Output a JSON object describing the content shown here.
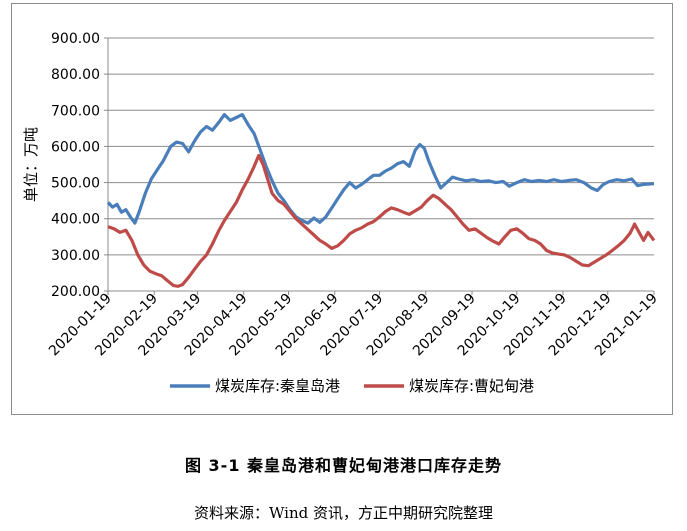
{
  "figure": {
    "title": "图 3-1  秦皇岛港和曹妃甸港港口库存走势",
    "source": "资料来源：Wind 资讯，方正中期研究院整理"
  },
  "chart_data": {
    "type": "line",
    "ylabel": "单位：万吨",
    "ylim": [
      200,
      900
    ],
    "yticks": [
      "200.00",
      "300.00",
      "400.00",
      "500.00",
      "600.00",
      "700.00",
      "800.00",
      "900.00"
    ],
    "xlim": [
      "2020-01-19",
      "2021-01-19"
    ],
    "xticks": [
      "2020-01-19",
      "2020-02-19",
      "2020-03-19",
      "2020-04-19",
      "2020-05-19",
      "2020-06-19",
      "2020-07-19",
      "2020-08-19",
      "2020-09-19",
      "2020-10-19",
      "2020-11-19",
      "2020-12-19",
      "2021-01-19"
    ],
    "grid": true,
    "legend": "bottom",
    "colors": [
      "#4a7ebb",
      "#be4b48"
    ],
    "series": [
      {
        "name": "煤炭库存:秦皇岛港",
        "points": [
          [
            "2020-01-19",
            445
          ],
          [
            "2020-01-22",
            432
          ],
          [
            "2020-01-25",
            440
          ],
          [
            "2020-01-28",
            418
          ],
          [
            "2020-01-31",
            425
          ],
          [
            "2020-02-03",
            405
          ],
          [
            "2020-02-06",
            388
          ],
          [
            "2020-02-09",
            420
          ],
          [
            "2020-02-13",
            470
          ],
          [
            "2020-02-17",
            510
          ],
          [
            "2020-02-21",
            535
          ],
          [
            "2020-02-25",
            560
          ],
          [
            "2020-03-01",
            600
          ],
          [
            "2020-03-05",
            612
          ],
          [
            "2020-03-09",
            608
          ],
          [
            "2020-03-13",
            585
          ],
          [
            "2020-03-17",
            615
          ],
          [
            "2020-03-21",
            640
          ],
          [
            "2020-03-25",
            655
          ],
          [
            "2020-03-29",
            645
          ],
          [
            "2020-04-02",
            665
          ],
          [
            "2020-04-06",
            688
          ],
          [
            "2020-04-10",
            672
          ],
          [
            "2020-04-14",
            680
          ],
          [
            "2020-04-18",
            688
          ],
          [
            "2020-04-22",
            660
          ],
          [
            "2020-04-26",
            635
          ],
          [
            "2020-04-30",
            590
          ],
          [
            "2020-05-04",
            545
          ],
          [
            "2020-05-08",
            505
          ],
          [
            "2020-05-12",
            470
          ],
          [
            "2020-05-16",
            450
          ],
          [
            "2020-05-20",
            425
          ],
          [
            "2020-05-24",
            405
          ],
          [
            "2020-05-28",
            395
          ],
          [
            "2020-06-01",
            388
          ],
          [
            "2020-06-05",
            402
          ],
          [
            "2020-06-09",
            390
          ],
          [
            "2020-06-13",
            405
          ],
          [
            "2020-06-17",
            430
          ],
          [
            "2020-06-21",
            455
          ],
          [
            "2020-06-25",
            480
          ],
          [
            "2020-06-29",
            500
          ],
          [
            "2020-07-03",
            485
          ],
          [
            "2020-07-07",
            495
          ],
          [
            "2020-07-11",
            508
          ],
          [
            "2020-07-15",
            520
          ],
          [
            "2020-07-19",
            520
          ],
          [
            "2020-07-23",
            532
          ],
          [
            "2020-07-27",
            540
          ],
          [
            "2020-07-31",
            552
          ],
          [
            "2020-08-04",
            558
          ],
          [
            "2020-08-08",
            545
          ],
          [
            "2020-08-12",
            590
          ],
          [
            "2020-08-15",
            605
          ],
          [
            "2020-08-18",
            595
          ],
          [
            "2020-08-21",
            560
          ],
          [
            "2020-08-25",
            520
          ],
          [
            "2020-08-29",
            485
          ],
          [
            "2020-09-02",
            500
          ],
          [
            "2020-09-06",
            515
          ],
          [
            "2020-09-10",
            510
          ],
          [
            "2020-09-15",
            505
          ],
          [
            "2020-09-20",
            508
          ],
          [
            "2020-09-25",
            503
          ],
          [
            "2020-09-30",
            505
          ],
          [
            "2020-10-05",
            500
          ],
          [
            "2020-10-10",
            503
          ],
          [
            "2020-10-14",
            490
          ],
          [
            "2020-10-19",
            500
          ],
          [
            "2020-10-24",
            508
          ],
          [
            "2020-10-29",
            503
          ],
          [
            "2020-11-03",
            506
          ],
          [
            "2020-11-08",
            503
          ],
          [
            "2020-11-13",
            508
          ],
          [
            "2020-11-18",
            503
          ],
          [
            "2020-11-23",
            506
          ],
          [
            "2020-11-28",
            508
          ],
          [
            "2020-12-03",
            500
          ],
          [
            "2020-12-08",
            485
          ],
          [
            "2020-12-12",
            478
          ],
          [
            "2020-12-16",
            495
          ],
          [
            "2020-12-20",
            503
          ],
          [
            "2020-12-25",
            508
          ],
          [
            "2020-12-30",
            505
          ],
          [
            "2021-01-04",
            510
          ],
          [
            "2021-01-08",
            492
          ],
          [
            "2021-01-12",
            495
          ],
          [
            "2021-01-19",
            497
          ]
        ]
      },
      {
        "name": "煤炭库存:曹妃甸港",
        "points": [
          [
            "2020-01-19",
            378
          ],
          [
            "2020-01-23",
            372
          ],
          [
            "2020-01-27",
            362
          ],
          [
            "2020-01-31",
            368
          ],
          [
            "2020-02-04",
            340
          ],
          [
            "2020-02-08",
            300
          ],
          [
            "2020-02-12",
            272
          ],
          [
            "2020-02-16",
            255
          ],
          [
            "2020-02-20",
            248
          ],
          [
            "2020-02-24",
            242
          ],
          [
            "2020-02-28",
            228
          ],
          [
            "2020-03-03",
            215
          ],
          [
            "2020-03-06",
            213
          ],
          [
            "2020-03-09",
            218
          ],
          [
            "2020-03-13",
            238
          ],
          [
            "2020-03-17",
            260
          ],
          [
            "2020-03-21",
            282
          ],
          [
            "2020-03-25",
            300
          ],
          [
            "2020-03-29",
            330
          ],
          [
            "2020-04-02",
            365
          ],
          [
            "2020-04-06",
            395
          ],
          [
            "2020-04-10",
            420
          ],
          [
            "2020-04-14",
            445
          ],
          [
            "2020-04-18",
            480
          ],
          [
            "2020-04-22",
            510
          ],
          [
            "2020-04-26",
            545
          ],
          [
            "2020-04-29",
            575
          ],
          [
            "2020-05-02",
            550
          ],
          [
            "2020-05-05",
            510
          ],
          [
            "2020-05-08",
            470
          ],
          [
            "2020-05-12",
            450
          ],
          [
            "2020-05-16",
            440
          ],
          [
            "2020-05-20",
            420
          ],
          [
            "2020-05-24",
            400
          ],
          [
            "2020-05-28",
            385
          ],
          [
            "2020-06-01",
            370
          ],
          [
            "2020-06-05",
            355
          ],
          [
            "2020-06-09",
            340
          ],
          [
            "2020-06-13",
            330
          ],
          [
            "2020-06-17",
            318
          ],
          [
            "2020-06-21",
            325
          ],
          [
            "2020-06-25",
            340
          ],
          [
            "2020-06-29",
            358
          ],
          [
            "2020-07-03",
            368
          ],
          [
            "2020-07-07",
            375
          ],
          [
            "2020-07-11",
            385
          ],
          [
            "2020-07-15",
            392
          ],
          [
            "2020-07-19",
            405
          ],
          [
            "2020-07-23",
            420
          ],
          [
            "2020-07-27",
            430
          ],
          [
            "2020-07-31",
            425
          ],
          [
            "2020-08-04",
            418
          ],
          [
            "2020-08-08",
            412
          ],
          [
            "2020-08-12",
            422
          ],
          [
            "2020-08-16",
            432
          ],
          [
            "2020-08-20",
            450
          ],
          [
            "2020-08-24",
            465
          ],
          [
            "2020-08-28",
            455
          ],
          [
            "2020-09-01",
            440
          ],
          [
            "2020-09-05",
            425
          ],
          [
            "2020-09-09",
            405
          ],
          [
            "2020-09-13",
            385
          ],
          [
            "2020-09-17",
            368
          ],
          [
            "2020-09-21",
            372
          ],
          [
            "2020-09-25",
            360
          ],
          [
            "2020-09-29",
            348
          ],
          [
            "2020-10-03",
            338
          ],
          [
            "2020-10-07",
            330
          ],
          [
            "2020-10-11",
            350
          ],
          [
            "2020-10-15",
            368
          ],
          [
            "2020-10-19",
            372
          ],
          [
            "2020-10-23",
            360
          ],
          [
            "2020-10-27",
            345
          ],
          [
            "2020-10-31",
            340
          ],
          [
            "2020-11-04",
            330
          ],
          [
            "2020-11-08",
            312
          ],
          [
            "2020-11-12",
            305
          ],
          [
            "2020-11-16",
            302
          ],
          [
            "2020-11-20",
            300
          ],
          [
            "2020-11-24",
            292
          ],
          [
            "2020-11-28",
            282
          ],
          [
            "2020-12-02",
            272
          ],
          [
            "2020-12-06",
            270
          ],
          [
            "2020-12-10",
            280
          ],
          [
            "2020-12-14",
            290
          ],
          [
            "2020-12-18",
            300
          ],
          [
            "2020-12-22",
            312
          ],
          [
            "2020-12-26",
            325
          ],
          [
            "2020-12-30",
            340
          ],
          [
            "2021-01-03",
            360
          ],
          [
            "2021-01-06",
            385
          ],
          [
            "2021-01-09",
            362
          ],
          [
            "2021-01-12",
            340
          ],
          [
            "2021-01-15",
            362
          ],
          [
            "2021-01-19",
            340
          ]
        ]
      }
    ]
  }
}
